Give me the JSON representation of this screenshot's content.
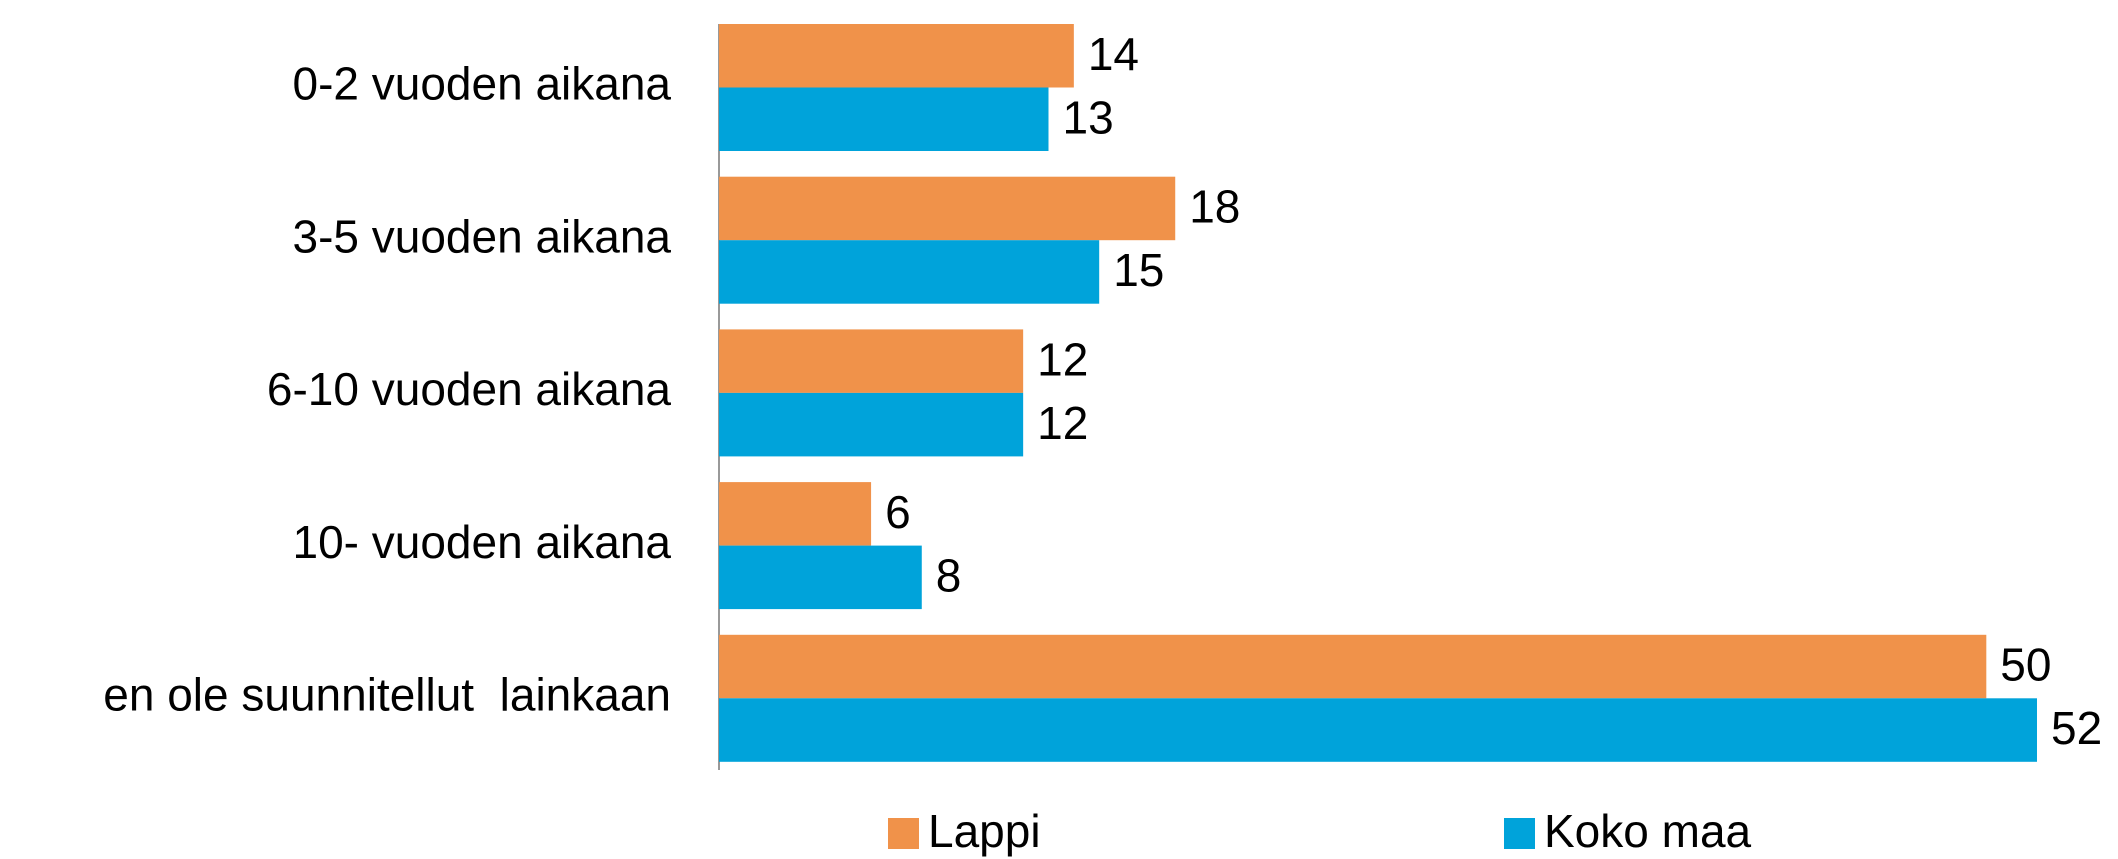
{
  "chart_data": {
    "type": "barh",
    "categories": [
      "0-2 vuoden aikana",
      "3-5 vuoden aikana",
      "6-10 vuoden aikana",
      "10- vuoden aikana",
      "en ole suunnitellut  lainkaan"
    ],
    "series": [
      {
        "name": "Lappi",
        "color": "#f0924a",
        "values": [
          14,
          18,
          12,
          6,
          50
        ]
      },
      {
        "name": "Koko maa",
        "color": "#00a3da",
        "values": [
          13,
          15,
          12,
          8,
          52
        ]
      }
    ],
    "xlim": [
      0,
      52
    ],
    "legend": "bottom"
  }
}
